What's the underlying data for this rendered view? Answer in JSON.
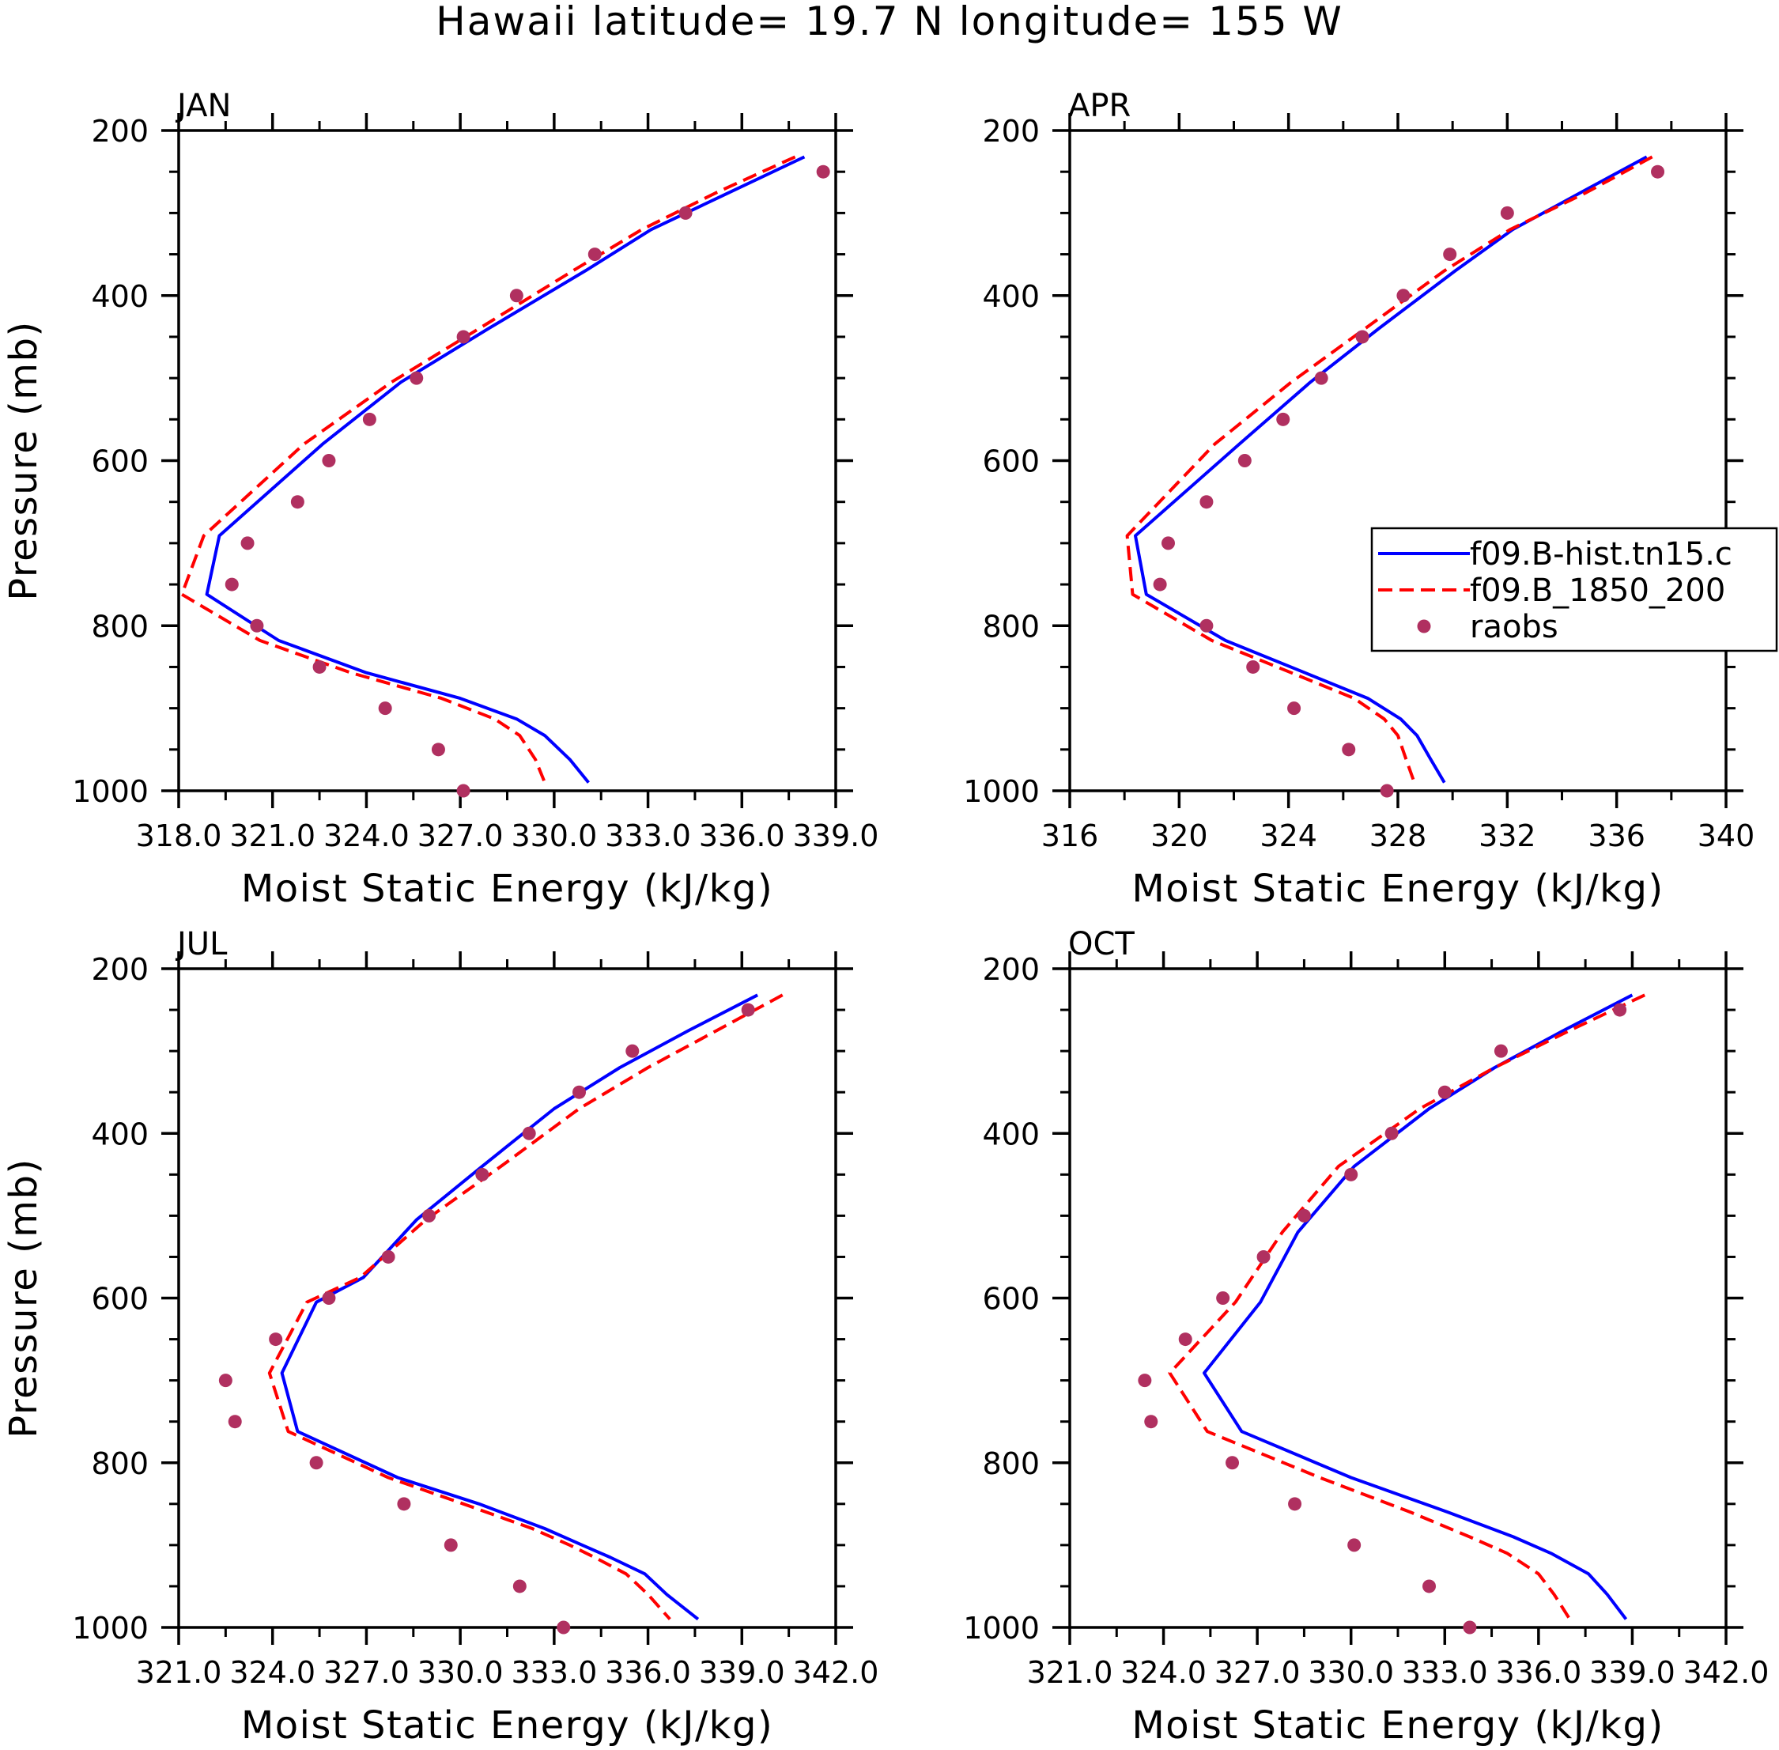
{
  "title": "Hawaii  latitude= 19.7 N longitude= 155 W",
  "colors": {
    "hist": "#0000ff",
    "control": "#ff0000",
    "raobs": "#b03060",
    "frame": "#000000"
  },
  "legend": {
    "items": [
      {
        "label": "f09.B-hist.tn15.c",
        "style": "solid",
        "color": "#0000ff"
      },
      {
        "label": "f09.B_1850_200",
        "style": "dashed",
        "color": "#ff0000"
      },
      {
        "label": "raobs",
        "style": "dot",
        "color": "#b03060"
      }
    ]
  },
  "chart_data": [
    {
      "type": "line",
      "panel": "JAN",
      "title": "JAN",
      "xlabel": "Moist Static Energy (kJ/kg)",
      "ylabel": "Pressure (mb)",
      "xlim": [
        318.0,
        339.0
      ],
      "ylim": [
        1000,
        200
      ],
      "xticks": [
        318,
        321,
        324,
        327,
        330,
        333,
        336,
        339
      ],
      "xticklabels": [
        "318.0",
        "321.0",
        "324.0",
        "327.0",
        "330.0",
        "333.0",
        "336.0",
        "339.0"
      ],
      "yticks": [
        200,
        400,
        600,
        800,
        1000
      ],
      "yticklabels": [
        "200",
        "400",
        "600",
        "800",
        "1000"
      ],
      "series": [
        {
          "name": "f09.B-hist.tn15.c",
          "style": "solid",
          "x": [
            338.0,
            335.6,
            333.1,
            331.0,
            327.9,
            325.1,
            322.6,
            319.3,
            318.9,
            321.2,
            324.0,
            327.0,
            328.8,
            329.7,
            330.5,
            331.1
          ],
          "y": [
            232,
            275,
            320,
            370,
            440,
            505,
            580,
            691,
            762,
            818,
            857,
            888,
            913,
            933,
            962,
            990
          ]
        },
        {
          "name": "f09.B_1850_200",
          "style": "dashed",
          "x": [
            337.7,
            335.2,
            332.8,
            330.6,
            327.6,
            324.8,
            322.0,
            318.8,
            318.1,
            320.6,
            323.5,
            326.4,
            328.1,
            328.9,
            329.4,
            329.7
          ],
          "y": [
            232,
            275,
            320,
            370,
            440,
            505,
            580,
            691,
            762,
            818,
            857,
            888,
            913,
            933,
            962,
            990
          ]
        },
        {
          "name": "raobs",
          "style": "dot",
          "x": [
            338.6,
            334.2,
            331.3,
            328.8,
            327.1,
            325.6,
            324.1,
            322.8,
            321.8,
            320.2,
            319.7,
            320.5,
            322.5,
            324.6,
            326.3,
            327.1
          ],
          "y": [
            250,
            300,
            350,
            400,
            450,
            500,
            550,
            600,
            650,
            700,
            750,
            800,
            850,
            900,
            950,
            1000
          ]
        }
      ]
    },
    {
      "type": "line",
      "panel": "APR",
      "title": "APR",
      "xlabel": "Moist Static Energy (kJ/kg)",
      "ylabel": "",
      "xlim": [
        316,
        340
      ],
      "ylim": [
        1000,
        200
      ],
      "xticks": [
        316,
        320,
        324,
        328,
        332,
        336,
        340
      ],
      "xticklabels": [
        "316",
        "320",
        "324",
        "328",
        "332",
        "336",
        "340"
      ],
      "yticks": [
        200,
        400,
        600,
        800,
        1000
      ],
      "yticklabels": [
        "200",
        "400",
        "600",
        "800",
        "1000"
      ],
      "series": [
        {
          "name": "f09.B-hist.tn15.c",
          "style": "solid",
          "x": [
            337.1,
            334.7,
            332.2,
            330.1,
            327.3,
            324.8,
            322.2,
            318.4,
            318.8,
            321.7,
            324.6,
            326.9,
            328.1,
            328.7,
            329.2,
            329.7
          ],
          "y": [
            232,
            275,
            320,
            370,
            440,
            505,
            580,
            691,
            762,
            818,
            857,
            888,
            913,
            933,
            962,
            990
          ]
        },
        {
          "name": "f09.B_1850_200",
          "style": "dashed",
          "x": [
            337.3,
            334.9,
            332.1,
            329.7,
            326.8,
            324.1,
            321.3,
            318.1,
            318.3,
            321.2,
            324.1,
            326.4,
            327.5,
            328.0,
            328.3,
            328.6
          ],
          "y": [
            232,
            275,
            320,
            370,
            440,
            505,
            580,
            691,
            762,
            818,
            857,
            888,
            913,
            933,
            962,
            990
          ]
        },
        {
          "name": "raobs",
          "style": "dot",
          "x": [
            337.5,
            332.0,
            329.9,
            328.2,
            326.7,
            325.2,
            323.8,
            322.4,
            321.0,
            319.6,
            319.3,
            321.0,
            322.7,
            324.2,
            326.2,
            327.6
          ],
          "y": [
            250,
            300,
            350,
            400,
            450,
            500,
            550,
            600,
            650,
            700,
            750,
            800,
            850,
            900,
            950,
            1000
          ]
        }
      ]
    },
    {
      "type": "line",
      "panel": "JUL",
      "title": "JUL",
      "xlabel": "Moist Static Energy (kJ/kg)",
      "ylabel": "Pressure (mb)",
      "xlim": [
        321.0,
        342.0
      ],
      "ylim": [
        1000,
        200
      ],
      "xticks": [
        321,
        324,
        327,
        330,
        333,
        336,
        339,
        342
      ],
      "xticklabels": [
        "321.0",
        "324.0",
        "327.0",
        "330.0",
        "333.0",
        "336.0",
        "339.0",
        "342.0"
      ],
      "yticks": [
        200,
        400,
        600,
        800,
        1000
      ],
      "yticklabels": [
        "200",
        "400",
        "600",
        "800",
        "1000"
      ],
      "series": [
        {
          "name": "f09.B-hist.tn15.c",
          "style": "solid",
          "x": [
            339.5,
            337.3,
            335.1,
            333.0,
            330.7,
            328.6,
            326.9,
            325.4,
            324.3,
            324.8,
            328.0,
            330.6,
            332.7,
            333.9,
            334.8,
            335.9,
            336.6,
            337.6
          ],
          "y": [
            232,
            275,
            320,
            370,
            440,
            505,
            575,
            605,
            691,
            762,
            818,
            850,
            880,
            900,
            915,
            935,
            960,
            990
          ]
        },
        {
          "name": "f09.B_1850_200",
          "style": "dashed",
          "x": [
            340.3,
            338.2,
            336.0,
            333.8,
            331.3,
            328.9,
            326.8,
            325.1,
            323.9,
            324.5,
            327.7,
            330.1,
            332.3,
            333.5,
            334.3,
            335.3,
            336.0,
            336.7
          ],
          "y": [
            232,
            275,
            320,
            370,
            440,
            505,
            575,
            605,
            691,
            762,
            818,
            850,
            880,
            900,
            915,
            935,
            960,
            990
          ]
        },
        {
          "name": "raobs",
          "style": "dot",
          "x": [
            339.2,
            335.5,
            333.8,
            332.2,
            330.7,
            329.0,
            327.7,
            325.8,
            324.1,
            322.5,
            322.8,
            325.4,
            328.2,
            329.7,
            331.9,
            333.3
          ],
          "y": [
            250,
            300,
            350,
            400,
            450,
            500,
            550,
            600,
            650,
            700,
            750,
            800,
            850,
            900,
            950,
            1000
          ]
        }
      ]
    },
    {
      "type": "line",
      "panel": "OCT",
      "title": "OCT",
      "xlabel": "Moist Static Energy (kJ/kg)",
      "ylabel": "",
      "xlim": [
        321.0,
        342.0
      ],
      "ylim": [
        1000,
        200
      ],
      "xticks": [
        321,
        324,
        327,
        330,
        333,
        336,
        339,
        342
      ],
      "xticklabels": [
        "321.0",
        "324.0",
        "327.0",
        "330.0",
        "333.0",
        "336.0",
        "339.0",
        "342.0"
      ],
      "yticks": [
        200,
        400,
        600,
        800,
        1000
      ],
      "yticklabels": [
        "200",
        "400",
        "600",
        "800",
        "1000"
      ],
      "series": [
        {
          "name": "f09.B-hist.tn15.c",
          "style": "solid",
          "x": [
            339.0,
            336.8,
            334.6,
            332.5,
            330.1,
            328.3,
            327.1,
            325.3,
            326.5,
            330.0,
            333.1,
            335.2,
            336.4,
            337.6,
            338.2,
            338.8
          ],
          "y": [
            232,
            275,
            320,
            370,
            440,
            520,
            605,
            691,
            762,
            818,
            860,
            890,
            910,
            935,
            960,
            990
          ]
        },
        {
          "name": "f09.B_1850_200",
          "style": "dashed",
          "x": [
            339.4,
            337.0,
            334.6,
            332.2,
            329.6,
            327.8,
            326.3,
            324.2,
            325.4,
            329.0,
            331.9,
            333.8,
            335.0,
            336.0,
            336.5,
            337.0
          ],
          "y": [
            232,
            275,
            320,
            370,
            440,
            520,
            605,
            691,
            762,
            818,
            860,
            890,
            910,
            935,
            960,
            990
          ]
        },
        {
          "name": "raobs",
          "style": "dot",
          "x": [
            338.6,
            334.8,
            333.0,
            331.3,
            330.0,
            328.5,
            327.2,
            325.9,
            324.7,
            323.4,
            323.6,
            326.2,
            328.2,
            330.1,
            332.5,
            333.8
          ],
          "y": [
            250,
            300,
            350,
            400,
            450,
            500,
            550,
            600,
            650,
            700,
            750,
            800,
            850,
            900,
            950,
            1000
          ]
        }
      ]
    }
  ]
}
